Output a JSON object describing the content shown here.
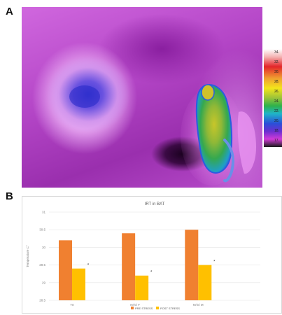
{
  "panel_a": {
    "label": "A",
    "colorbar_ticks": [
      "34.",
      "32.",
      "30.",
      "28.",
      "26.",
      "24.",
      "22.",
      "20.",
      "18.",
      "17."
    ],
    "colorbar_ticks_truncated": true
  },
  "panel_b": {
    "label": "B"
  },
  "chart_data": {
    "type": "bar",
    "title": "IRT in BAT",
    "ylabel": "Temperature  C°",
    "xlabel": "",
    "categories": [
      "Trt",
      "Nrhri F",
      "Nrhri M"
    ],
    "series": [
      {
        "name": "PRE STRESS",
        "color": "#f08030",
        "values": [
          30.2,
          30.4,
          30.5
        ]
      },
      {
        "name": "POST STRESS",
        "color": "#ffc000",
        "values": [
          29.4,
          29.2,
          29.5
        ]
      }
    ],
    "significance_markers": [
      "*",
      "*",
      "*"
    ],
    "ylim": [
      28.5,
      31
    ],
    "yticks": [
      "31",
      "30.5",
      "30",
      "29.5",
      "29",
      "28.5"
    ],
    "grid": true,
    "legend_position": "bottom"
  },
  "colors": {
    "pre_stress": "#f08030",
    "post_stress": "#ffc000",
    "gridline": "#e6e6e6"
  }
}
